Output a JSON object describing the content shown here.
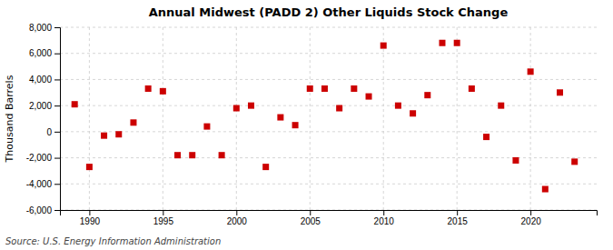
{
  "chart_data": {
    "type": "scatter",
    "title": "Annual Midwest (PADD 2) Other Liquids Stock Change",
    "ylabel": "Thousand Barrels",
    "annotations": [
      "Source: U.S. Energy Information Administration"
    ],
    "color": "#cc0000",
    "marker": "square",
    "grid": true,
    "xlim": [
      1988.0,
      2024.5
    ],
    "xticks": [
      1990,
      1995,
      2000,
      2005,
      2010,
      2015,
      2020
    ],
    "ylim": [
      -6000,
      8000
    ],
    "yticks": [
      {
        "value": -6000,
        "label": "-6,000"
      },
      {
        "value": -4000,
        "label": "-4,000"
      },
      {
        "value": -2000,
        "label": "-2,000"
      },
      0,
      {
        "value": 2000,
        "label": "2,000"
      },
      {
        "value": 4000,
        "label": "4,000"
      },
      {
        "value": 6000,
        "label": "6,000"
      },
      {
        "value": 8000,
        "label": "8,000"
      }
    ],
    "x": [
      1989,
      1990,
      1991,
      1992,
      1993,
      1994,
      1995,
      1996,
      1997,
      1998,
      1999,
      2000,
      2001,
      2002,
      2003,
      2004,
      2005,
      2006,
      2007,
      2008,
      2009,
      2010,
      2011,
      2012,
      2013,
      2014,
      2015,
      2016,
      2017,
      2018,
      2019,
      2020,
      2021,
      2022,
      2023
    ],
    "values": [
      2100,
      -2700,
      -300,
      -200,
      700,
      3300,
      3100,
      -1800,
      -1800,
      400,
      -1800,
      1800,
      2000,
      -2700,
      1100,
      500,
      3300,
      3300,
      1800,
      3300,
      2700,
      6600,
      2000,
      1400,
      2800,
      6800,
      6800,
      3300,
      -400,
      2000,
      -2200,
      4600,
      -4400,
      3000,
      -2300
    ]
  }
}
